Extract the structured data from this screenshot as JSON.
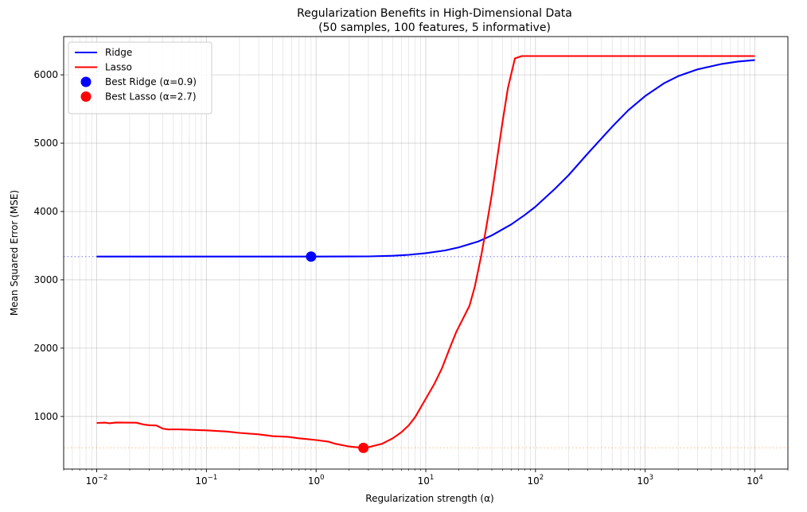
{
  "chart_data": {
    "type": "line",
    "title": "Regularization Benefits in High-Dimensional Data",
    "subtitle": "(50 samples, 100 features, 5 informative)",
    "xlabel": "Regularization strength (α)",
    "ylabel": "Mean Squared Error (MSE)",
    "xscale": "log",
    "xlim": [
      0.005,
      20000
    ],
    "ylim": [
      230,
      6560
    ],
    "x_ticks": [
      {
        "value": 0.01,
        "base": "10",
        "exp": "−2"
      },
      {
        "value": 0.1,
        "base": "10",
        "exp": "−1"
      },
      {
        "value": 1,
        "base": "10",
        "exp": "0"
      },
      {
        "value": 10,
        "base": "10",
        "exp": "1"
      },
      {
        "value": 100,
        "base": "10",
        "exp": "2"
      },
      {
        "value": 1000,
        "base": "10",
        "exp": "3"
      },
      {
        "value": 10000,
        "base": "10",
        "exp": "4"
      }
    ],
    "y_ticks": [
      1000,
      2000,
      3000,
      4000,
      5000,
      6000
    ],
    "grid": true,
    "legend_position": "top-left",
    "series": [
      {
        "name": "Ridge",
        "color": "#0000ff",
        "points": [
          [
            0.01,
            3340
          ],
          [
            0.1,
            3340
          ],
          [
            0.5,
            3340
          ],
          [
            1,
            3340
          ],
          [
            2,
            3341
          ],
          [
            3,
            3343
          ],
          [
            5,
            3352
          ],
          [
            7,
            3366
          ],
          [
            10,
            3390
          ],
          [
            15,
            3430
          ],
          [
            20,
            3475
          ],
          [
            30,
            3560
          ],
          [
            40,
            3650
          ],
          [
            60,
            3810
          ],
          [
            80,
            3950
          ],
          [
            100,
            4070
          ],
          [
            150,
            4330
          ],
          [
            200,
            4530
          ],
          [
            300,
            4850
          ],
          [
            500,
            5240
          ],
          [
            700,
            5480
          ],
          [
            1000,
            5690
          ],
          [
            1500,
            5880
          ],
          [
            2000,
            5980
          ],
          [
            3000,
            6080
          ],
          [
            5000,
            6160
          ],
          [
            7000,
            6195
          ],
          [
            10000,
            6215
          ]
        ]
      },
      {
        "name": "Lasso",
        "color": "#ff0000",
        "points": [
          [
            0.01,
            905
          ],
          [
            0.012,
            910
          ],
          [
            0.013,
            900
          ],
          [
            0.015,
            912
          ],
          [
            0.018,
            910
          ],
          [
            0.023,
            908
          ],
          [
            0.027,
            880
          ],
          [
            0.03,
            872
          ],
          [
            0.035,
            868
          ],
          [
            0.04,
            822
          ],
          [
            0.045,
            810
          ],
          [
            0.05,
            812
          ],
          [
            0.06,
            810
          ],
          [
            0.1,
            797
          ],
          [
            0.15,
            780
          ],
          [
            0.2,
            760
          ],
          [
            0.3,
            738
          ],
          [
            0.4,
            712
          ],
          [
            0.55,
            702
          ],
          [
            0.7,
            680
          ],
          [
            1,
            655
          ],
          [
            1.3,
            630
          ],
          [
            1.5,
            600
          ],
          [
            2,
            560
          ],
          [
            2.7,
            540
          ],
          [
            3,
            550
          ],
          [
            4,
            600
          ],
          [
            5,
            680
          ],
          [
            6,
            770
          ],
          [
            7,
            870
          ],
          [
            8,
            990
          ],
          [
            10,
            1260
          ],
          [
            12,
            1480
          ],
          [
            14,
            1700
          ],
          [
            17,
            2050
          ],
          [
            19,
            2240
          ],
          [
            25,
            2620
          ],
          [
            28,
            2900
          ],
          [
            32,
            3350
          ],
          [
            35,
            3700
          ],
          [
            40,
            4250
          ],
          [
            50,
            5300
          ],
          [
            56,
            5800
          ],
          [
            65,
            6240
          ],
          [
            75,
            6275
          ],
          [
            100,
            6275
          ],
          [
            1000,
            6275
          ],
          [
            10000,
            6275
          ]
        ]
      }
    ],
    "highlights": [
      {
        "label": "Best Ridge (α=0.9)",
        "x": 0.9,
        "y": 3340,
        "color": "#0000ff"
      },
      {
        "label": "Best Lasso (α=2.7)",
        "x": 2.7,
        "y": 540,
        "color": "#ff0000"
      }
    ],
    "reference_lines": [
      {
        "y": 3340,
        "color": "#0000ff"
      },
      {
        "y": 540,
        "color": "#ff7f0e"
      }
    ]
  }
}
